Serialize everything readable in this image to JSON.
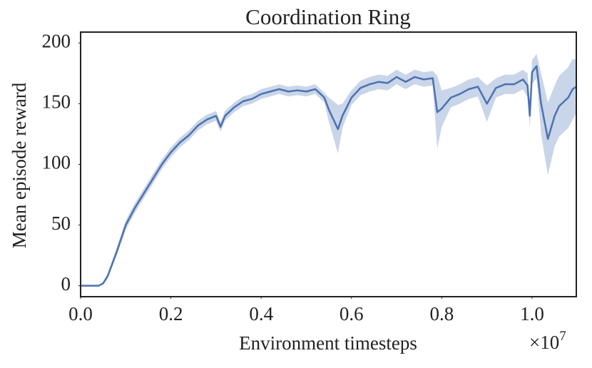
{
  "chart_data": {
    "type": "line",
    "title": "Coordination Ring",
    "x_label": "Environment timesteps",
    "y_label": "Mean episode reward",
    "x_offset_base": "×10",
    "x_offset_exp": "7",
    "x": [
      0,
      0.04,
      0.05,
      0.06,
      0.08,
      0.1,
      0.12,
      0.14,
      0.16,
      0.18,
      0.2,
      0.22,
      0.24,
      0.26,
      0.28,
      0.3,
      0.31,
      0.32,
      0.34,
      0.36,
      0.38,
      0.4,
      0.42,
      0.44,
      0.46,
      0.48,
      0.5,
      0.52,
      0.54,
      0.55,
      0.56,
      0.57,
      0.58,
      0.6,
      0.62,
      0.64,
      0.66,
      0.68,
      0.7,
      0.72,
      0.74,
      0.76,
      0.78,
      0.79,
      0.8,
      0.82,
      0.84,
      0.86,
      0.88,
      0.9,
      0.92,
      0.94,
      0.96,
      0.98,
      0.99,
      0.995,
      1.0,
      1.01,
      1.02,
      1.035,
      1.05,
      1.06,
      1.08,
      1.09,
      1.098
    ],
    "values": [
      0,
      0,
      2,
      8,
      28,
      50,
      64,
      76,
      88,
      100,
      110,
      118,
      124,
      132,
      137,
      140,
      131,
      140,
      147,
      152,
      154,
      158,
      160,
      162,
      160,
      161,
      160,
      162,
      155,
      145,
      137,
      129,
      140,
      155,
      163,
      166,
      168,
      167,
      172,
      168,
      172,
      170,
      171,
      143,
      146,
      155,
      158,
      162,
      164,
      150,
      163,
      166,
      166,
      170,
      165,
      140,
      176,
      181,
      150,
      121,
      140,
      148,
      155,
      162,
      164
    ],
    "lower": [
      0,
      0,
      1,
      6,
      25,
      46,
      60,
      72,
      84,
      96,
      106,
      114,
      120,
      128,
      133,
      136,
      127,
      136,
      143,
      148,
      150,
      154,
      156,
      158,
      156,
      157,
      156,
      158,
      151,
      135,
      122,
      109,
      130,
      149,
      157,
      160,
      162,
      161,
      166,
      162,
      166,
      164,
      165,
      113,
      131,
      147,
      150,
      154,
      156,
      135,
      155,
      158,
      158,
      162,
      155,
      130,
      166,
      171,
      125,
      91,
      115,
      123,
      130,
      137,
      142
    ],
    "upper": [
      0,
      0,
      3,
      10,
      31,
      54,
      68,
      80,
      92,
      104,
      114,
      122,
      128,
      136,
      141,
      144,
      135,
      144,
      151,
      156,
      158,
      162,
      164,
      166,
      164,
      165,
      164,
      166,
      159,
      155,
      152,
      149,
      150,
      161,
      169,
      172,
      174,
      173,
      178,
      174,
      178,
      176,
      177,
      173,
      161,
      163,
      166,
      170,
      172,
      165,
      171,
      174,
      174,
      178,
      175,
      150,
      186,
      191,
      175,
      151,
      165,
      173,
      180,
      187,
      186
    ],
    "color": "#4c72b0",
    "band_color": "#c9d5e8",
    "xlim": [
      0,
      1.098
    ],
    "xticks": [
      {
        "value": 0,
        "label": "0.0"
      },
      {
        "value": 0.2,
        "label": "0.2"
      },
      {
        "value": 0.4,
        "label": "0.4"
      },
      {
        "value": 0.6,
        "label": "0.6"
      },
      {
        "value": 0.8,
        "label": "0.8"
      },
      {
        "value": 1.0,
        "label": "1.0"
      }
    ],
    "ylim": [
      -9,
      209
    ],
    "yticks": [
      0,
      50,
      100,
      150,
      200
    ],
    "grid": false
  }
}
